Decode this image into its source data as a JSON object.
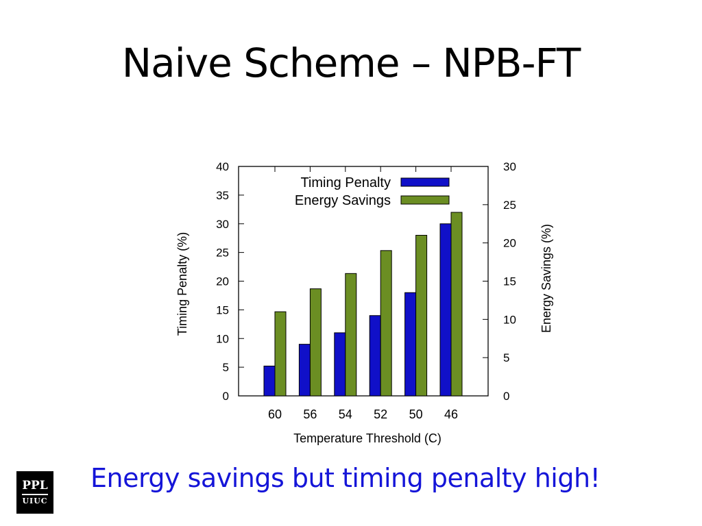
{
  "slide": {
    "title": "Naive Scheme – NPB-FT",
    "caption": "Energy savings but timing penalty high!",
    "logo": {
      "line1": "PPL",
      "line2": "UIUC"
    }
  },
  "colors": {
    "timing": "#1010c8",
    "energy": "#6b8e23",
    "caption": "#1515d8"
  },
  "chart_data": {
    "type": "bar",
    "xlabel": "Temperature Threshold (C)",
    "ylabel": "Timing Penalty (%)",
    "y2label": "Energy Savings (%)",
    "categories": [
      "60",
      "56",
      "54",
      "52",
      "50",
      "46"
    ],
    "ylim": [
      0,
      40
    ],
    "y2lim": [
      0,
      30
    ],
    "yticks": [
      0,
      5,
      10,
      15,
      20,
      25,
      30,
      35,
      40
    ],
    "y2ticks": [
      0,
      5,
      10,
      15,
      20,
      25,
      30
    ],
    "legend_position": "top-center",
    "grid": false,
    "series": [
      {
        "name": "Timing Penalty",
        "axis": "left",
        "values": [
          5.2,
          9,
          11,
          14,
          18,
          30
        ]
      },
      {
        "name": "Energy Savings",
        "axis": "right",
        "values": [
          11,
          14,
          16,
          19,
          21,
          24
        ]
      }
    ]
  }
}
